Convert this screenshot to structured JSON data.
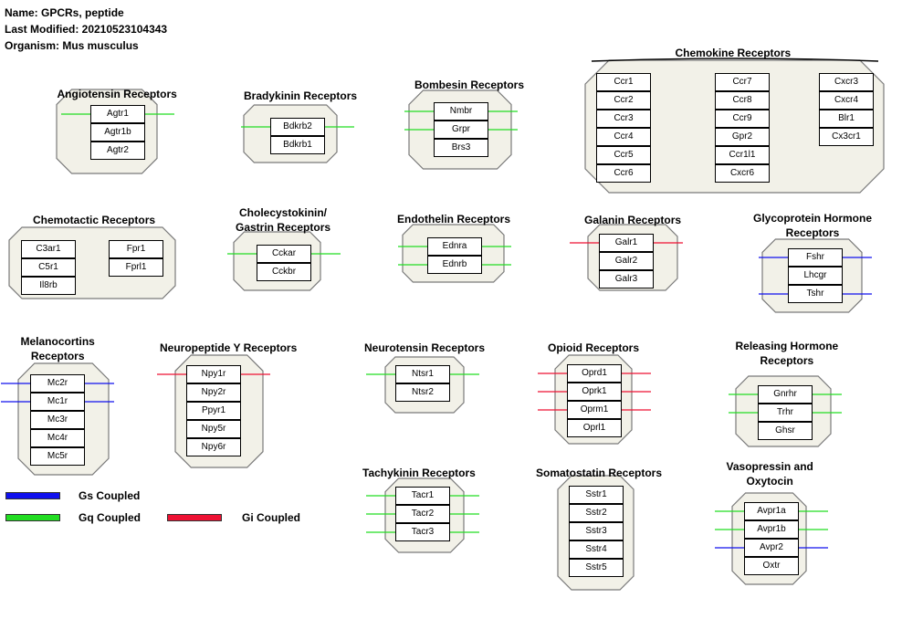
{
  "header": {
    "name": "Name: GPCRs, peptide",
    "last_modified": "Last Modified: 20210523104343",
    "organism": "Organism: Mus musculus"
  },
  "colors": {
    "gs": "#1010ee",
    "gq": "#22dd22",
    "gi": "#ee1133",
    "compartment_fill": "#f2f1e8",
    "compartment_stroke": "#7a7a7a"
  },
  "legend": {
    "gs": "Gs Coupled",
    "gq": "Gq Coupled",
    "gi": "Gi Coupled"
  },
  "groups": [
    {
      "id": "angiotensin",
      "title": [
        "Angiotensin Receptors"
      ],
      "nodes": [
        "Agtr1",
        "Agtr1b",
        "Agtr2"
      ]
    },
    {
      "id": "bradykinin",
      "title": [
        "Bradykinin Receptors"
      ],
      "nodes": [
        "Bdkrb2",
        "Bdkrb1"
      ]
    },
    {
      "id": "bombesin",
      "title": [
        "Bombesin Receptors"
      ],
      "nodes": [
        "Nmbr",
        "Grpr",
        "Brs3"
      ]
    },
    {
      "id": "chemokine",
      "title": [
        "Chemokine Receptors"
      ],
      "nodes": [
        "Ccr1",
        "Ccr2",
        "Ccr3",
        "Ccr4",
        "Ccr5",
        "Ccr6",
        "Ccr7",
        "Ccr8",
        "Ccr9",
        "Gpr2",
        "Ccr1l1",
        "Cxcr6",
        "Cxcr3",
        "Cxcr4",
        "Blr1",
        "Cx3cr1"
      ]
    },
    {
      "id": "chemotactic",
      "title": [
        "Chemotactic Receptors"
      ],
      "nodes": [
        "C3ar1",
        "C5r1",
        "Il8rb",
        "Fpr1",
        "Fprl1"
      ]
    },
    {
      "id": "cholecystokinin",
      "title": [
        "Cholecystokinin/",
        "Gastrin Receptors"
      ],
      "nodes": [
        "Cckar",
        "Cckbr"
      ]
    },
    {
      "id": "endothelin",
      "title": [
        "Endothelin Receptors"
      ],
      "nodes": [
        "Ednra",
        "Ednrb"
      ]
    },
    {
      "id": "galanin",
      "title": [
        "Galanin Receptors"
      ],
      "nodes": [
        "Galr1",
        "Galr2",
        "Galr3"
      ]
    },
    {
      "id": "glycoprotein",
      "title": [
        "Glycoprotein Hormone",
        "Receptors"
      ],
      "nodes": [
        "Fshr",
        "Lhcgr",
        "Tshr"
      ]
    },
    {
      "id": "melanocortins",
      "title": [
        "Melanocortins",
        "Receptors"
      ],
      "nodes": [
        "Mc2r",
        "Mc1r",
        "Mc3r",
        "Mc4r",
        "Mc5r"
      ]
    },
    {
      "id": "npy",
      "title": [
        "Neuropeptide Y Receptors"
      ],
      "nodes": [
        "Npy1r",
        "Npy2r",
        "Ppyr1",
        "Npy5r",
        "Npy6r"
      ]
    },
    {
      "id": "neurotensin",
      "title": [
        "Neurotensin Receptors"
      ],
      "nodes": [
        "Ntsr1",
        "Ntsr2"
      ]
    },
    {
      "id": "opioid",
      "title": [
        "Opioid Receptors"
      ],
      "nodes": [
        "Oprd1",
        "Oprk1",
        "Oprm1",
        "Oprl1"
      ]
    },
    {
      "id": "releasing",
      "title": [
        "Releasing Hormone",
        "Receptors"
      ],
      "nodes": [
        "Gnrhr",
        "Trhr",
        "Ghsr"
      ]
    },
    {
      "id": "tachykinin",
      "title": [
        "Tachykinin Receptors"
      ],
      "nodes": [
        "Tacr1",
        "Tacr2",
        "Tacr3"
      ]
    },
    {
      "id": "somatostatin",
      "title": [
        "Somatostatin Receptors"
      ],
      "nodes": [
        "Sstr1",
        "Sstr2",
        "Sstr3",
        "Sstr4",
        "Sstr5"
      ]
    },
    {
      "id": "vasopressin",
      "title": [
        "Vasopressin and",
        "Oxytocin"
      ],
      "nodes": [
        "Avpr1a",
        "Avpr1b",
        "Avpr2",
        "Oxtr"
      ]
    }
  ],
  "couplings": [
    {
      "node": "Agtr1",
      "type": "gq"
    },
    {
      "node": "Bdkrb2",
      "type": "gq"
    },
    {
      "node": "Nmbr",
      "type": "gq"
    },
    {
      "node": "Grpr",
      "type": "gq"
    },
    {
      "node": "Cckar",
      "type": "gq"
    },
    {
      "node": "Ednra",
      "type": "gq"
    },
    {
      "node": "Ednrb",
      "type": "gq"
    },
    {
      "node": "Galr1",
      "type": "gi"
    },
    {
      "node": "Fshr",
      "type": "gs"
    },
    {
      "node": "Tshr",
      "type": "gs"
    },
    {
      "node": "Mc2r",
      "type": "gs"
    },
    {
      "node": "Mc1r",
      "type": "gs"
    },
    {
      "node": "Npy1r",
      "type": "gi"
    },
    {
      "node": "Ntsr1",
      "type": "gq"
    },
    {
      "node": "Oprd1",
      "type": "gi"
    },
    {
      "node": "Oprk1",
      "type": "gi"
    },
    {
      "node": "Oprm1",
      "type": "gi"
    },
    {
      "node": "Gnrhr",
      "type": "gq"
    },
    {
      "node": "Trhr",
      "type": "gq"
    },
    {
      "node": "Tacr1",
      "type": "gq"
    },
    {
      "node": "Tacr2",
      "type": "gq"
    },
    {
      "node": "Tacr3",
      "type": "gq"
    },
    {
      "node": "Avpr1a",
      "type": "gq"
    },
    {
      "node": "Avpr1b",
      "type": "gq"
    },
    {
      "node": "Avpr2",
      "type": "gs"
    }
  ]
}
